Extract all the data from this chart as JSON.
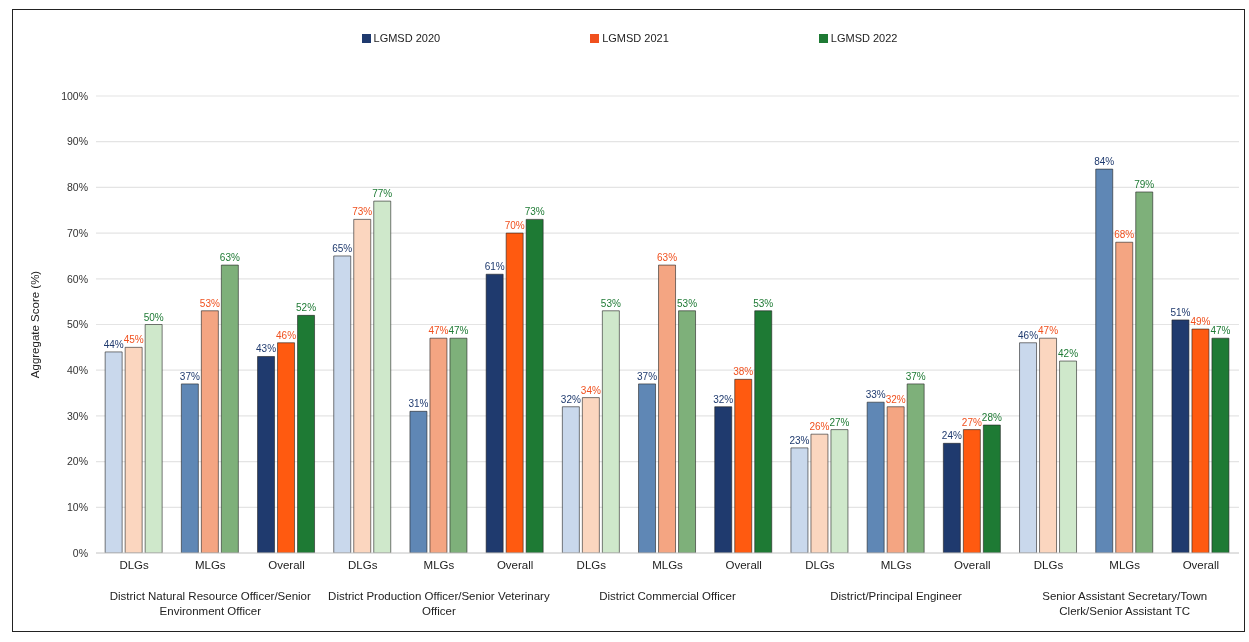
{
  "chart_data": {
    "type": "bar",
    "ylabel": "Aggregate Score (%)",
    "categories": [
      "DLGs",
      "MLGs",
      "Overall",
      "DLGs",
      "MLGs",
      "Overall",
      "DLGs",
      "MLGs",
      "Overall",
      "DLGs",
      "MLGs",
      "Overall",
      "DLGs",
      "MLGs",
      "Overall"
    ],
    "annotations": [
      "District Natural Resource Officer/Senior Environment Officer",
      "District Production Officer/Senior Veterinary Officer",
      "District Commercial Officer",
      "District/Principal Engineer",
      "Senior Assistant Secretary/Town Clerk/Senior Assistant TC"
    ],
    "series": [
      {
        "name": "LGMSD 2020",
        "color": "#1f3a6e",
        "colors": [
          "#c9d8ec",
          "#5f87b5",
          "#1f3a6e",
          "#c9d8ec",
          "#5f87b5",
          "#1f3a6e",
          "#c9d8ec",
          "#5f87b5",
          "#1f3a6e",
          "#c9d8ec",
          "#5f87b5",
          "#1f3a6e",
          "#c9d8ec",
          "#5f87b5",
          "#1f3a6e"
        ],
        "values": [
          44,
          37,
          43,
          65,
          31,
          61,
          32,
          37,
          32,
          23,
          33,
          24,
          46,
          84,
          51
        ],
        "value_labels": [
          "44%",
          "37%",
          "43%",
          "65%",
          "31%",
          "61%",
          "32%",
          "37%",
          "32%",
          "23%",
          "33%",
          "24%",
          "46%",
          "84%",
          "51%"
        ]
      },
      {
        "name": "LGMSD 2021",
        "color": "#f0501e",
        "colors": [
          "#fbd6bf",
          "#f4a582",
          "#ff5a10",
          "#fbd6bf",
          "#f4a582",
          "#ff5a10",
          "#fbd6bf",
          "#f4a582",
          "#ff5a10",
          "#fbd6bf",
          "#f4a582",
          "#ff5a10",
          "#fbd6bf",
          "#f4a582",
          "#ff5a10"
        ],
        "values": [
          45,
          53,
          46,
          73,
          47,
          70,
          34,
          63,
          38,
          26,
          32,
          27,
          47,
          68,
          49
        ],
        "value_labels": [
          "45%",
          "53%",
          "46%",
          "73%",
          "47%",
          "70%",
          "34%",
          "63%",
          "38%",
          "26%",
          "32%",
          "27%",
          "47%",
          "68%",
          "49%"
        ]
      },
      {
        "name": "LGMSD 2022",
        "color": "#1e7a34",
        "colors": [
          "#cfe8cb",
          "#7eb07a",
          "#1e7a34",
          "#cfe8cb",
          "#7eb07a",
          "#1e7a34",
          "#cfe8cb",
          "#7eb07a",
          "#1e7a34",
          "#cfe8cb",
          "#7eb07a",
          "#1e7a34",
          "#cfe8cb",
          "#7eb07a",
          "#1e7a34"
        ],
        "values": [
          50,
          63,
          52,
          77,
          47,
          73,
          53,
          53,
          53,
          27,
          37,
          28,
          42,
          79,
          47
        ],
        "value_labels": [
          "50%",
          "63%",
          "52%",
          "77%",
          "47%",
          "73%",
          "53%",
          "53%",
          "53%",
          "27%",
          "37%",
          "28%",
          "42%",
          "79%",
          "47%"
        ]
      }
    ],
    "ylim": [
      0,
      100
    ],
    "yticks": [
      {
        "value": 0,
        "label": "0%"
      },
      {
        "value": 10,
        "label": "10%"
      },
      {
        "value": 20,
        "label": "20%"
      },
      {
        "value": 30,
        "label": "30%"
      },
      {
        "value": 40,
        "label": "40%"
      },
      {
        "value": 50,
        "label": "50%"
      },
      {
        "value": 60,
        "label": "60%"
      },
      {
        "value": 70,
        "label": "70%"
      },
      {
        "value": 80,
        "label": "80%"
      },
      {
        "value": 90,
        "label": "90%"
      },
      {
        "value": 100,
        "label": "100%"
      }
    ],
    "grid": "y",
    "legend": "top"
  }
}
